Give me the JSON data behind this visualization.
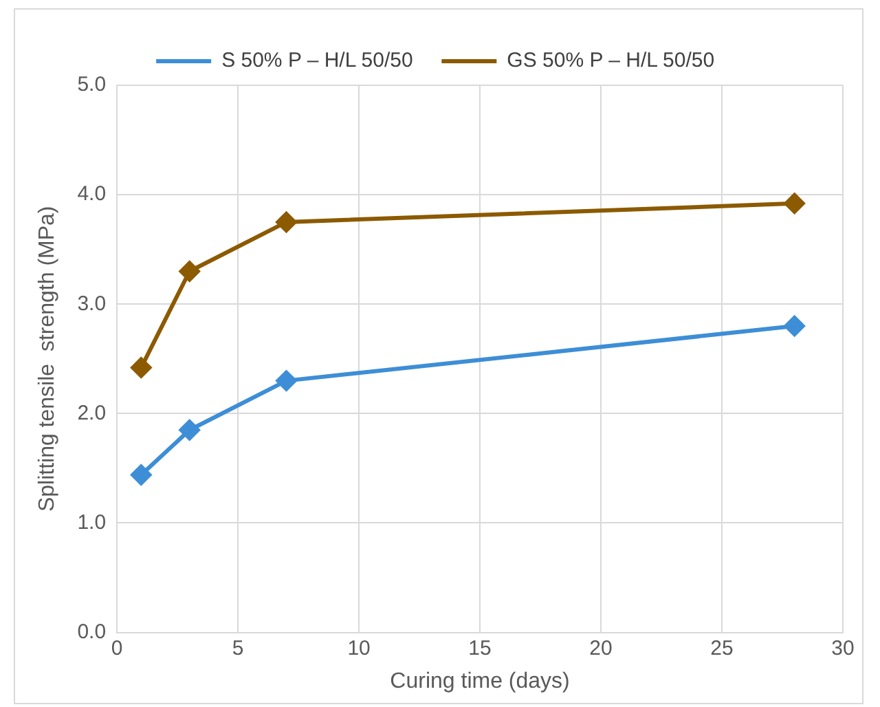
{
  "chart_data": {
    "type": "line",
    "xlabel": "Curing time (days)",
    "ylabel": "Splitting tensile  strength (MPa)",
    "series": [
      {
        "name": "S 50% P – H/L 50/50",
        "color": "#3d8ed6",
        "x": [
          1,
          3,
          7,
          28
        ],
        "values": [
          1.44,
          1.85,
          2.3,
          2.8
        ]
      },
      {
        "name": "GS 50% P – H/L 50/50",
        "color": "#8c5a00",
        "x": [
          1,
          3,
          7,
          28
        ],
        "values": [
          2.42,
          3.3,
          3.75,
          3.92
        ]
      }
    ],
    "xlim": [
      0,
      30
    ],
    "xticks": [
      0,
      5,
      10,
      15,
      20,
      25,
      30
    ],
    "ylim": [
      0,
      5
    ],
    "yticks": [
      {
        "value": 0,
        "label": "0.0"
      },
      {
        "value": 1,
        "label": "1.0"
      },
      {
        "value": 2,
        "label": "2.0"
      },
      {
        "value": 3,
        "label": "3.0"
      },
      {
        "value": 4,
        "label": "4.0"
      },
      {
        "value": 5,
        "label": "5.0"
      }
    ],
    "grid": true,
    "legend": "top",
    "marker": "diamond",
    "line_style": "solid"
  }
}
